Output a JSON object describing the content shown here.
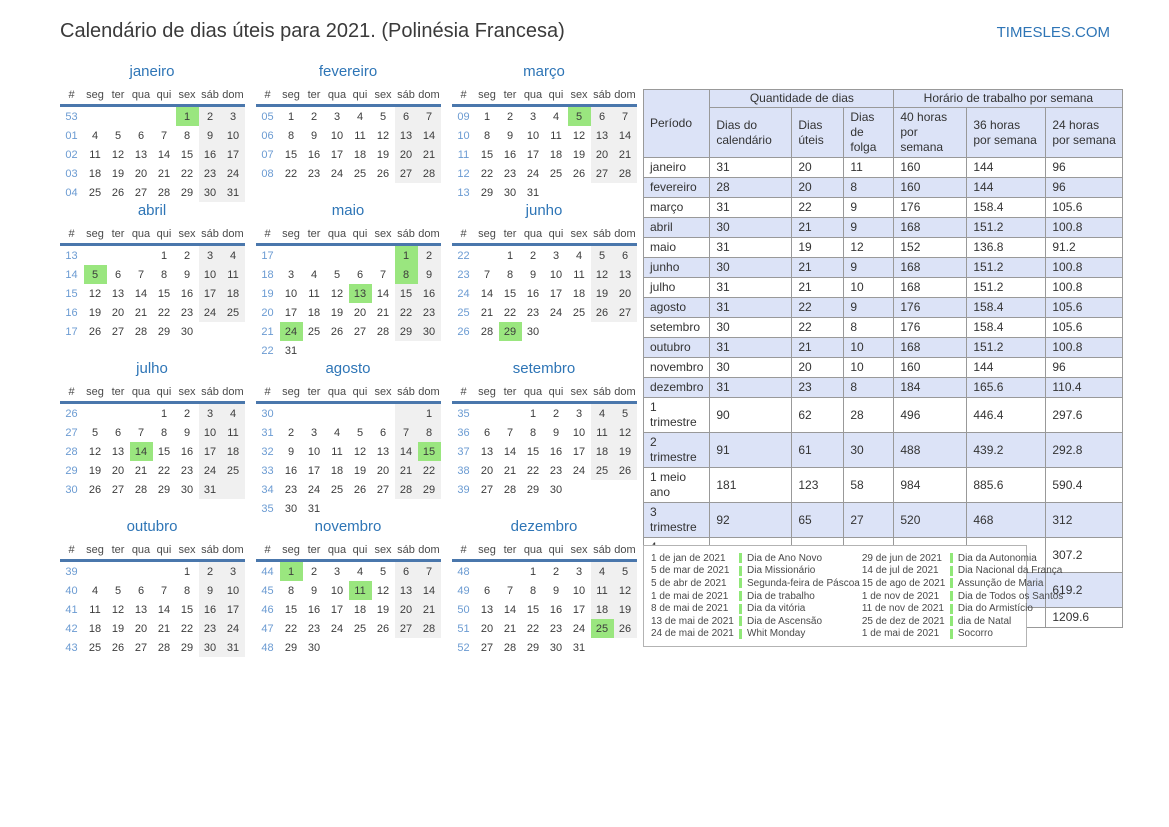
{
  "page": {
    "title": "Calendário de dias úteis para 2021. (Polinésia Francesa)",
    "site_link": "TIMESLES.COM"
  },
  "colors": {
    "accent_blue": "#2e75b6",
    "week_number_blue": "#6b9bd2",
    "header_underline_blue": "#4a77ac",
    "holiday_green": "#9ae67f",
    "legend_marker_green": "#90e878",
    "weekend_gray": "#f0f0f0",
    "table_stripe_lavender": "#dce3f7"
  },
  "calendar": {
    "day_headers": [
      "#",
      "seg",
      "ter",
      "qua",
      "qui",
      "sex",
      "sáb",
      "dom"
    ],
    "months": [
      {
        "name": "janeiro",
        "holidays": [
          "1"
        ],
        "weeks": [
          {
            "num": "53",
            "days": [
              "",
              "",
              "",
              "",
              "1",
              "2",
              "3"
            ]
          },
          {
            "num": "01",
            "days": [
              "4",
              "5",
              "6",
              "7",
              "8",
              "9",
              "10"
            ]
          },
          {
            "num": "02",
            "days": [
              "11",
              "12",
              "13",
              "14",
              "15",
              "16",
              "17"
            ]
          },
          {
            "num": "03",
            "days": [
              "18",
              "19",
              "20",
              "21",
              "22",
              "23",
              "24"
            ]
          },
          {
            "num": "04",
            "days": [
              "25",
              "26",
              "27",
              "28",
              "29",
              "30",
              "31"
            ]
          }
        ]
      },
      {
        "name": "fevereiro",
        "holidays": [],
        "weeks": [
          {
            "num": "05",
            "days": [
              "1",
              "2",
              "3",
              "4",
              "5",
              "6",
              "7"
            ]
          },
          {
            "num": "06",
            "days": [
              "8",
              "9",
              "10",
              "11",
              "12",
              "13",
              "14"
            ]
          },
          {
            "num": "07",
            "days": [
              "15",
              "16",
              "17",
              "18",
              "19",
              "20",
              "21"
            ]
          },
          {
            "num": "08",
            "days": [
              "22",
              "23",
              "24",
              "25",
              "26",
              "27",
              "28"
            ]
          }
        ]
      },
      {
        "name": "março",
        "holidays": [
          "5"
        ],
        "weeks": [
          {
            "num": "09",
            "days": [
              "1",
              "2",
              "3",
              "4",
              "5",
              "6",
              "7"
            ]
          },
          {
            "num": "10",
            "days": [
              "8",
              "9",
              "10",
              "11",
              "12",
              "13",
              "14"
            ]
          },
          {
            "num": "11",
            "days": [
              "15",
              "16",
              "17",
              "18",
              "19",
              "20",
              "21"
            ]
          },
          {
            "num": "12",
            "days": [
              "22",
              "23",
              "24",
              "25",
              "26",
              "27",
              "28"
            ]
          },
          {
            "num": "13",
            "days": [
              "29",
              "30",
              "31",
              "",
              "",
              "",
              ""
            ]
          }
        ]
      },
      {
        "name": "abril",
        "holidays": [
          "5"
        ],
        "weeks": [
          {
            "num": "13",
            "days": [
              "",
              "",
              "",
              "1",
              "2",
              "3",
              "4"
            ]
          },
          {
            "num": "14",
            "days": [
              "5",
              "6",
              "7",
              "8",
              "9",
              "10",
              "11"
            ]
          },
          {
            "num": "15",
            "days": [
              "12",
              "13",
              "14",
              "15",
              "16",
              "17",
              "18"
            ]
          },
          {
            "num": "16",
            "days": [
              "19",
              "20",
              "21",
              "22",
              "23",
              "24",
              "25"
            ]
          },
          {
            "num": "17",
            "days": [
              "26",
              "27",
              "28",
              "29",
              "30",
              "",
              ""
            ]
          }
        ]
      },
      {
        "name": "maio",
        "holidays": [
          "1",
          "8",
          "13",
          "24"
        ],
        "weeks": [
          {
            "num": "17",
            "days": [
              "",
              "",
              "",
              "",
              "",
              "1",
              "2"
            ]
          },
          {
            "num": "18",
            "days": [
              "3",
              "4",
              "5",
              "6",
              "7",
              "8",
              "9"
            ]
          },
          {
            "num": "19",
            "days": [
              "10",
              "11",
              "12",
              "13",
              "14",
              "15",
              "16"
            ]
          },
          {
            "num": "20",
            "days": [
              "17",
              "18",
              "19",
              "20",
              "21",
              "22",
              "23"
            ]
          },
          {
            "num": "21",
            "days": [
              "24",
              "25",
              "26",
              "27",
              "28",
              "29",
              "30"
            ]
          },
          {
            "num": "22",
            "days": [
              "31",
              "",
              "",
              "",
              "",
              "",
              ""
            ]
          }
        ]
      },
      {
        "name": "junho",
        "holidays": [
          "29"
        ],
        "weeks": [
          {
            "num": "22",
            "days": [
              "",
              "1",
              "2",
              "3",
              "4",
              "5",
              "6"
            ]
          },
          {
            "num": "23",
            "days": [
              "7",
              "8",
              "9",
              "10",
              "11",
              "12",
              "13"
            ]
          },
          {
            "num": "24",
            "days": [
              "14",
              "15",
              "16",
              "17",
              "18",
              "19",
              "20"
            ]
          },
          {
            "num": "25",
            "days": [
              "21",
              "22",
              "23",
              "24",
              "25",
              "26",
              "27"
            ]
          },
          {
            "num": "26",
            "days": [
              "28",
              "29",
              "30",
              "",
              "",
              "",
              ""
            ]
          }
        ]
      },
      {
        "name": "julho",
        "holidays": [
          "14"
        ],
        "weeks": [
          {
            "num": "26",
            "days": [
              "",
              "",
              "",
              "1",
              "2",
              "3",
              "4"
            ]
          },
          {
            "num": "27",
            "days": [
              "5",
              "6",
              "7",
              "8",
              "9",
              "10",
              "11"
            ]
          },
          {
            "num": "28",
            "days": [
              "12",
              "13",
              "14",
              "15",
              "16",
              "17",
              "18"
            ]
          },
          {
            "num": "29",
            "days": [
              "19",
              "20",
              "21",
              "22",
              "23",
              "24",
              "25"
            ]
          },
          {
            "num": "30",
            "days": [
              "26",
              "27",
              "28",
              "29",
              "30",
              "31",
              ""
            ]
          }
        ]
      },
      {
        "name": "agosto",
        "holidays": [
          "15"
        ],
        "weeks": [
          {
            "num": "30",
            "days": [
              "",
              "",
              "",
              "",
              "",
              "",
              "1"
            ]
          },
          {
            "num": "31",
            "days": [
              "2",
              "3",
              "4",
              "5",
              "6",
              "7",
              "8"
            ]
          },
          {
            "num": "32",
            "days": [
              "9",
              "10",
              "11",
              "12",
              "13",
              "14",
              "15"
            ]
          },
          {
            "num": "33",
            "days": [
              "16",
              "17",
              "18",
              "19",
              "20",
              "21",
              "22"
            ]
          },
          {
            "num": "34",
            "days": [
              "23",
              "24",
              "25",
              "26",
              "27",
              "28",
              "29"
            ]
          },
          {
            "num": "35",
            "days": [
              "30",
              "31",
              "",
              "",
              "",
              "",
              ""
            ]
          }
        ]
      },
      {
        "name": "setembro",
        "holidays": [],
        "weeks": [
          {
            "num": "35",
            "days": [
              "",
              "",
              "1",
              "2",
              "3",
              "4",
              "5"
            ]
          },
          {
            "num": "36",
            "days": [
              "6",
              "7",
              "8",
              "9",
              "10",
              "11",
              "12"
            ]
          },
          {
            "num": "37",
            "days": [
              "13",
              "14",
              "15",
              "16",
              "17",
              "18",
              "19"
            ]
          },
          {
            "num": "38",
            "days": [
              "20",
              "21",
              "22",
              "23",
              "24",
              "25",
              "26"
            ]
          },
          {
            "num": "39",
            "days": [
              "27",
              "28",
              "29",
              "30",
              "",
              "",
              ""
            ]
          }
        ]
      },
      {
        "name": "outubro",
        "holidays": [],
        "weeks": [
          {
            "num": "39",
            "days": [
              "",
              "",
              "",
              "",
              "1",
              "2",
              "3"
            ]
          },
          {
            "num": "40",
            "days": [
              "4",
              "5",
              "6",
              "7",
              "8",
              "9",
              "10"
            ]
          },
          {
            "num": "41",
            "days": [
              "11",
              "12",
              "13",
              "14",
              "15",
              "16",
              "17"
            ]
          },
          {
            "num": "42",
            "days": [
              "18",
              "19",
              "20",
              "21",
              "22",
              "23",
              "24"
            ]
          },
          {
            "num": "43",
            "days": [
              "25",
              "26",
              "27",
              "28",
              "29",
              "30",
              "31"
            ]
          }
        ]
      },
      {
        "name": "novembro",
        "holidays": [
          "1",
          "11"
        ],
        "weeks": [
          {
            "num": "44",
            "days": [
              "1",
              "2",
              "3",
              "4",
              "5",
              "6",
              "7"
            ]
          },
          {
            "num": "45",
            "days": [
              "8",
              "9",
              "10",
              "11",
              "12",
              "13",
              "14"
            ]
          },
          {
            "num": "46",
            "days": [
              "15",
              "16",
              "17",
              "18",
              "19",
              "20",
              "21"
            ]
          },
          {
            "num": "47",
            "days": [
              "22",
              "23",
              "24",
              "25",
              "26",
              "27",
              "28"
            ]
          },
          {
            "num": "48",
            "days": [
              "29",
              "30",
              "",
              "",
              "",
              "",
              ""
            ]
          }
        ]
      },
      {
        "name": "dezembro",
        "holidays": [
          "25"
        ],
        "weeks": [
          {
            "num": "48",
            "days": [
              "",
              "",
              "1",
              "2",
              "3",
              "4",
              "5"
            ]
          },
          {
            "num": "49",
            "days": [
              "6",
              "7",
              "8",
              "9",
              "10",
              "11",
              "12"
            ]
          },
          {
            "num": "50",
            "days": [
              "13",
              "14",
              "15",
              "16",
              "17",
              "18",
              "19"
            ]
          },
          {
            "num": "51",
            "days": [
              "20",
              "21",
              "22",
              "23",
              "24",
              "25",
              "26"
            ]
          },
          {
            "num": "52",
            "days": [
              "27",
              "28",
              "29",
              "30",
              "31",
              "",
              ""
            ]
          }
        ]
      }
    ]
  },
  "stats_table": {
    "corner_header": "Período",
    "group_headers": [
      "Quantidade de dias",
      "Horário de trabalho por semana"
    ],
    "sub_headers": [
      "Dias do calendário",
      "Dias úteis",
      "Dias de folga",
      "40 horas por semana",
      "36 horas por semana",
      "24 horas por semana"
    ],
    "rows": [
      [
        "janeiro",
        "31",
        "20",
        "11",
        "160",
        "144",
        "96"
      ],
      [
        "fevereiro",
        "28",
        "20",
        "8",
        "160",
        "144",
        "96"
      ],
      [
        "março",
        "31",
        "22",
        "9",
        "176",
        "158.4",
        "105.6"
      ],
      [
        "abril",
        "30",
        "21",
        "9",
        "168",
        "151.2",
        "100.8"
      ],
      [
        "maio",
        "31",
        "19",
        "12",
        "152",
        "136.8",
        "91.2"
      ],
      [
        "junho",
        "30",
        "21",
        "9",
        "168",
        "151.2",
        "100.8"
      ],
      [
        "julho",
        "31",
        "21",
        "10",
        "168",
        "151.2",
        "100.8"
      ],
      [
        "agosto",
        "31",
        "22",
        "9",
        "176",
        "158.4",
        "105.6"
      ],
      [
        "setembro",
        "30",
        "22",
        "8",
        "176",
        "158.4",
        "105.6"
      ],
      [
        "outubro",
        "31",
        "21",
        "10",
        "168",
        "151.2",
        "100.8"
      ],
      [
        "novembro",
        "30",
        "20",
        "10",
        "160",
        "144",
        "96"
      ],
      [
        "dezembro",
        "31",
        "23",
        "8",
        "184",
        "165.6",
        "110.4"
      ],
      [
        "1 trimestre",
        "90",
        "62",
        "28",
        "496",
        "446.4",
        "297.6"
      ],
      [
        "2 trimestre",
        "91",
        "61",
        "30",
        "488",
        "439.2",
        "292.8"
      ],
      [
        "1 meio ano",
        "181",
        "123",
        "58",
        "984",
        "885.6",
        "590.4"
      ],
      [
        "3 trimestre",
        "92",
        "65",
        "27",
        "520",
        "468",
        "312"
      ],
      [
        "4 trimestre",
        "92",
        "64",
        "28",
        "512",
        "460.8",
        "307.2"
      ],
      [
        "2 meio ano",
        "184",
        "129",
        "55",
        "1032",
        "928.8",
        "619.2"
      ],
      [
        "1 ano",
        "365",
        "252",
        "113",
        "2016",
        "1814.4",
        "1209.6"
      ]
    ]
  },
  "holidays_legend": {
    "columns": [
      [
        {
          "date": "1 de jan de 2021",
          "name": "Dia de Ano Novo"
        },
        {
          "date": "5 de mar de 2021",
          "name": "Dia Missionário"
        },
        {
          "date": "5 de abr de 2021",
          "name": "Segunda-feira de Páscoa"
        },
        {
          "date": "1 de mai de 2021",
          "name": "Dia de trabalho"
        },
        {
          "date": "8 de mai de 2021",
          "name": "Dia da vitória"
        },
        {
          "date": "13 de mai de 2021",
          "name": "Dia de Ascensão"
        },
        {
          "date": "24 de mai de 2021",
          "name": "Whit Monday"
        }
      ],
      [
        {
          "date": "29 de jun de 2021",
          "name": "Dia da Autonomia"
        },
        {
          "date": "14 de jul de 2021",
          "name": "Dia Nacional da França"
        },
        {
          "date": "15 de ago de 2021",
          "name": "Assunção de Maria"
        },
        {
          "date": "1 de nov de 2021",
          "name": "Dia de Todos os Santos"
        },
        {
          "date": "11 de nov de 2021",
          "name": "Dia do Armistício"
        },
        {
          "date": "25 de dez de 2021",
          "name": "dia de Natal"
        },
        {
          "date": "1 de mai de 2021",
          "name": "Socorro"
        }
      ]
    ]
  }
}
